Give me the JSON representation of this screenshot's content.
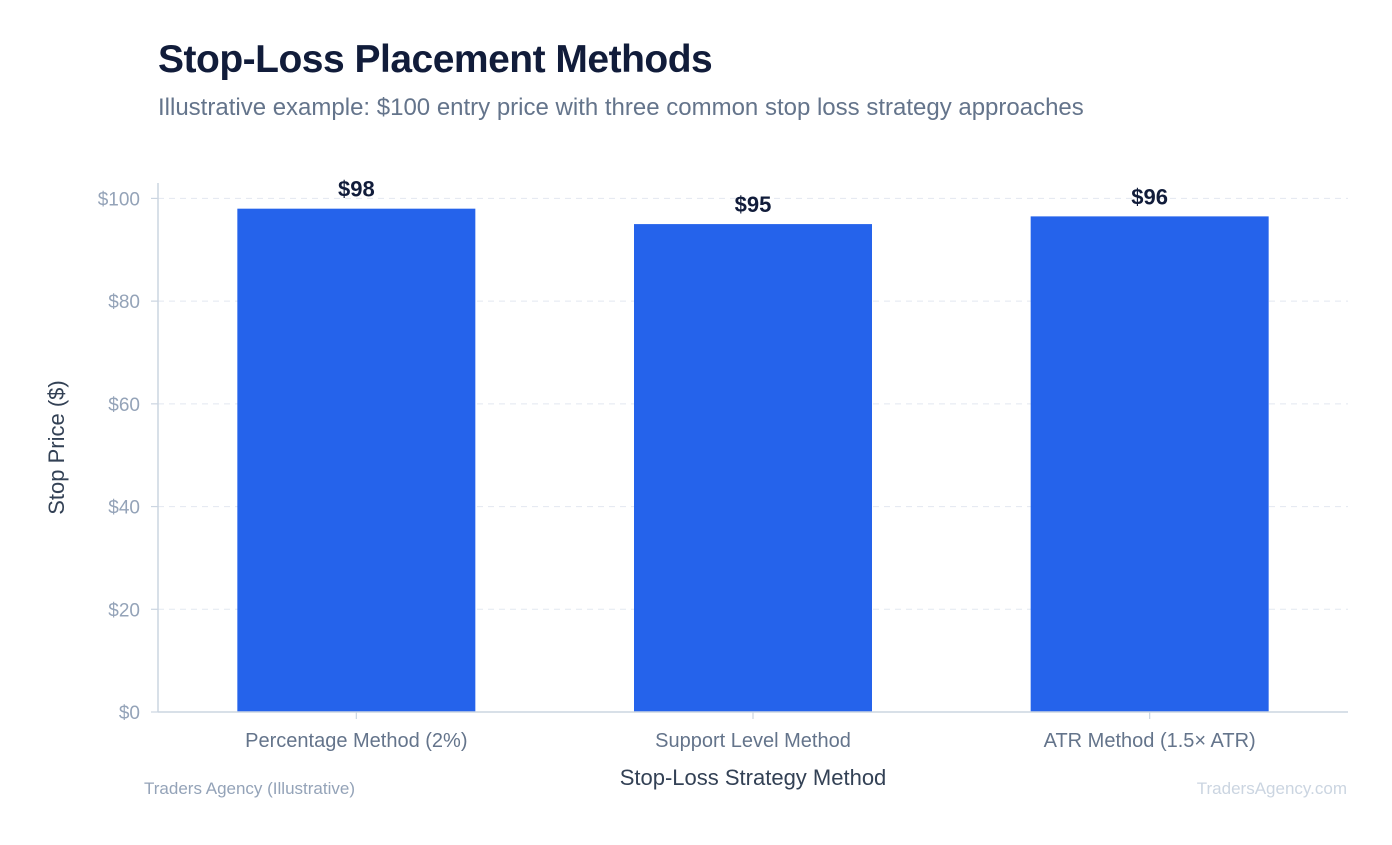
{
  "header": {
    "title": "Stop-Loss Placement Methods",
    "subtitle": "Illustrative example: $100 entry price with three common stop loss strategy approaches"
  },
  "footer": {
    "source": "Traders Agency (Illustrative)",
    "watermark": "TradersAgency.com"
  },
  "chart_data": {
    "type": "bar",
    "categories": [
      "Percentage Method (2%)",
      "Support Level Method",
      "ATR Method (1.5× ATR)"
    ],
    "values": [
      98,
      95,
      96.5
    ],
    "value_labels": [
      "$98",
      "$95",
      "$96"
    ],
    "xlabel": "Stop-Loss Strategy Method",
    "ylabel": "Stop Price ($)",
    "ylim": [
      0,
      103
    ],
    "yticks": [
      0,
      20,
      40,
      60,
      80,
      100
    ],
    "ytick_labels": [
      "$0",
      "$20",
      "$40",
      "$60",
      "$80",
      "$100"
    ],
    "grid": true,
    "legend": "none",
    "colors": {
      "bar": "#2563eb",
      "grid": "#e2e8f0",
      "axis": "#cbd5e1"
    }
  }
}
